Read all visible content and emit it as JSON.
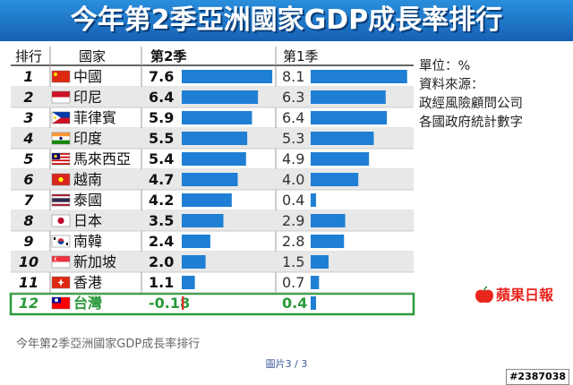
{
  "title": "今年第2季亞洲國家GDP成長率排行",
  "side_notes": {
    "unit": "單位：%",
    "source_label": "資料來源：",
    "source_1": "政經風險顧問公司",
    "source_2": "各國政府統計數字"
  },
  "logo_text": "蘋果日報",
  "caption": "今年第2季亞洲國家GDP成長率排行",
  "page_indicator": "圖片3 / 3",
  "watermark": "#2387038",
  "colors": {
    "title_blue": "#1b6ec2",
    "bar_blue": "#1f7fd4",
    "negative_red": "#d9302a",
    "highlight_green": "#2a9a3a",
    "row_shade": "#e8e8e8"
  },
  "chart_data": {
    "type": "bar",
    "title": "今年第2季亞洲國家GDP成長率排行",
    "unit": "單位：%",
    "columns": [
      "排行",
      "國家",
      "第2季",
      "第1季"
    ],
    "categories": [
      "中國",
      "印尼",
      "菲律賓",
      "印度",
      "馬來西亞",
      "越南",
      "泰國",
      "日本",
      "南韓",
      "新加坡",
      "香港",
      "台灣"
    ],
    "ranks": [
      "1",
      "2",
      "3",
      "4",
      "5",
      "6",
      "7",
      "8",
      "9",
      "10",
      "11",
      "12"
    ],
    "flags": [
      "china",
      "indonesia",
      "philippines",
      "india",
      "malaysia",
      "vietnam",
      "thailand",
      "japan",
      "south-korea",
      "singapore",
      "hong-kong",
      "taiwan"
    ],
    "series": [
      {
        "name": "第2季",
        "values": [
          7.6,
          6.4,
          5.9,
          5.5,
          5.4,
          4.7,
          4.2,
          3.5,
          2.4,
          2.0,
          1.1,
          -0.18
        ],
        "labels": [
          "7.6",
          "6.4",
          "5.9",
          "5.5",
          "5.4",
          "4.7",
          "4.2",
          "3.5",
          "2.4",
          "2.0",
          "1.1",
          "-0.18"
        ]
      },
      {
        "name": "第1季",
        "values": [
          8.1,
          6.3,
          6.4,
          5.3,
          4.9,
          4.0,
          0.4,
          2.9,
          2.8,
          1.5,
          0.7,
          0.4
        ],
        "labels": [
          "8.1",
          "6.3",
          "6.4",
          "5.3",
          "4.9",
          "4.0",
          "0.4",
          "2.9",
          "2.8",
          "1.5",
          "0.7",
          "0.4"
        ]
      }
    ],
    "highlight": "台灣"
  }
}
